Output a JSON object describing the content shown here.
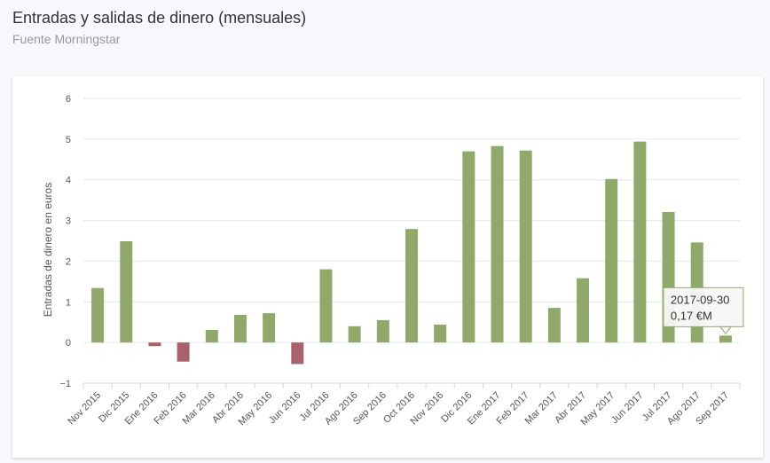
{
  "header": {
    "title": "Entradas y salidas de dinero (mensuales)",
    "subtitle": "Fuente Morningstar"
  },
  "tooltip": {
    "line1": "2017-09-30",
    "line2": "0,17 €M"
  },
  "colors": {
    "positive": "#8fa96b",
    "negative": "#a8626c",
    "grid": "#e6e6e6"
  },
  "chart_data": {
    "type": "bar",
    "title": "Entradas y salidas de dinero (mensuales)",
    "subtitle": "Fuente Morningstar",
    "xlabel": "",
    "ylabel": "Entradas de dinero en euros",
    "ylim": [
      -1,
      6
    ],
    "yticks": [
      -1,
      0,
      1,
      2,
      3,
      4,
      5,
      6
    ],
    "grid": true,
    "categories": [
      "Nov 2015",
      "Dic 2015",
      "Ene 2016",
      "Feb 2016",
      "Mar 2016",
      "Abr 2016",
      "May 2016",
      "Jun 2016",
      "Jul 2016",
      "Ago 2016",
      "Sep 2016",
      "Oct 2016",
      "Nov 2016",
      "Dic 2016",
      "Ene 2017",
      "Feb 2017",
      "Mar 2017",
      "Abr 2017",
      "May 2017",
      "Jun 2017",
      "Jul 2017",
      "Ago 2017",
      "Sep 2017"
    ],
    "values": [
      1.34,
      2.49,
      -0.09,
      -0.47,
      0.31,
      0.68,
      0.72,
      -0.53,
      1.8,
      0.4,
      0.55,
      2.79,
      0.44,
      4.7,
      4.83,
      4.72,
      0.85,
      1.58,
      4.02,
      4.94,
      3.21,
      2.46,
      0.17
    ]
  }
}
